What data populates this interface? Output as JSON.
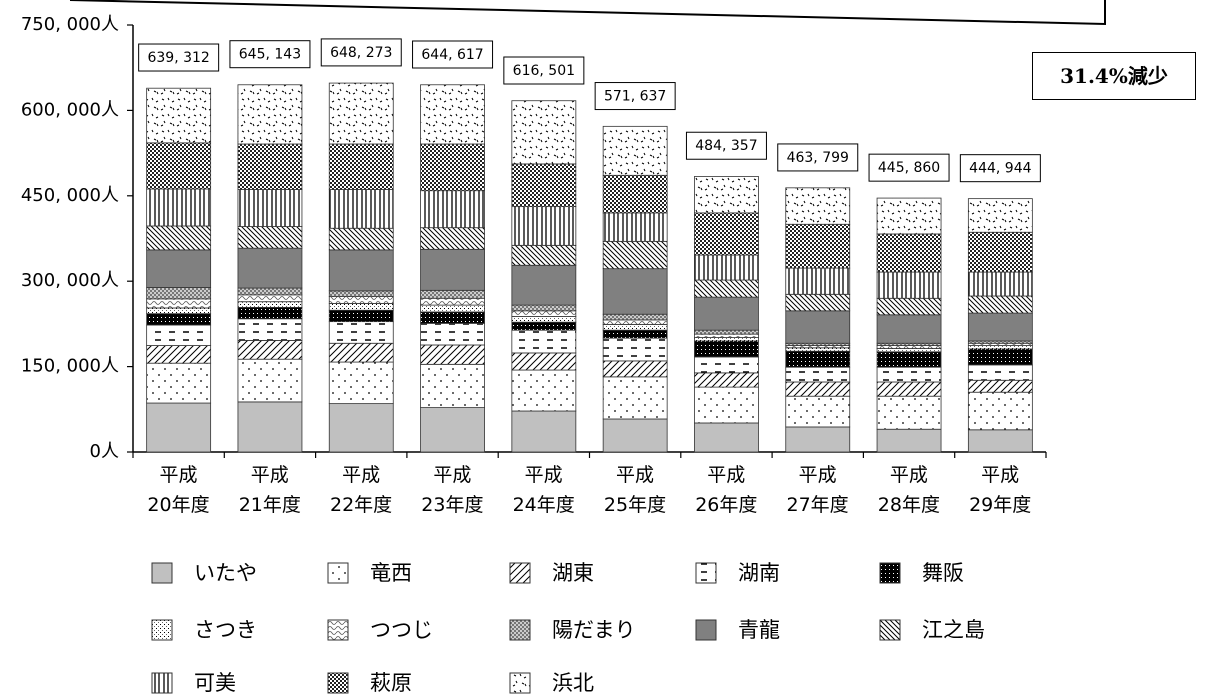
{
  "chart_data": {
    "type": "stacked_bar",
    "annotation": "31.4%減少",
    "categories": [
      "平成\n20年度",
      "平成\n21年度",
      "平成\n22年度",
      "平成\n23年度",
      "平成\n24年度",
      "平成\n25年度",
      "平成\n26年度",
      "平成\n27年度",
      "平成\n28年度",
      "平成\n29年度"
    ],
    "totals": [
      639312,
      645143,
      648273,
      644617,
      616501,
      571637,
      484357,
      463799,
      445860,
      444944
    ],
    "total_labels": [
      "639, 312",
      "645, 143",
      "648, 273",
      "644, 617",
      "616, 501",
      "571, 637",
      "484, 357",
      "463, 799",
      "445, 860",
      "444, 944"
    ],
    "ylim": [
      0,
      750000
    ],
    "yticks": [
      {
        "value": 0,
        "label": "0人"
      },
      {
        "value": 150000,
        "label": "150, 000人"
      },
      {
        "value": 300000,
        "label": "300, 000人"
      },
      {
        "value": 450000,
        "label": "450, 000人"
      },
      {
        "value": 600000,
        "label": "600, 000人"
      },
      {
        "value": 750000,
        "label": "750, 000人"
      }
    ],
    "series": [
      {
        "name": "いたや",
        "color": "#c0c0c0",
        "pattern": "solid",
        "values": [
          86000,
          88000,
          85000,
          78000,
          72000,
          58000,
          51000,
          44000,
          40000,
          39000
        ]
      },
      {
        "name": "竜西",
        "color": "#ffffff",
        "pattern": "dots",
        "values": [
          70000,
          75000,
          73000,
          76000,
          72000,
          74000,
          63000,
          54000,
          58000,
          66000
        ]
      },
      {
        "name": "湖東",
        "color": "#ffffff",
        "pattern": "diag",
        "values": [
          31000,
          33000,
          33000,
          34000,
          30000,
          28000,
          25000,
          25000,
          25000,
          21000
        ]
      },
      {
        "name": "湖南",
        "color": "#ffffff",
        "pattern": "dash",
        "values": [
          36000,
          38000,
          38000,
          38000,
          40000,
          40000,
          28000,
          26000,
          26000,
          27000
        ]
      },
      {
        "name": "舞阪",
        "color": "#000000",
        "pattern": "dense",
        "values": [
          20000,
          20000,
          20000,
          20000,
          14000,
          14000,
          28000,
          28000,
          27000,
          28000
        ]
      },
      {
        "name": "さつき",
        "color": "#ffffff",
        "pattern": "grid",
        "values": [
          10000,
          10000,
          12000,
          12000,
          10000,
          10000,
          6000,
          6000,
          6000,
          6000
        ]
      },
      {
        "name": "つつじ",
        "color": "#ffffff",
        "pattern": "wave",
        "values": [
          16000,
          12000,
          12000,
          12000,
          10000,
          8000,
          6000,
          4000,
          5000,
          4000
        ]
      },
      {
        "name": "陽だまり",
        "color": "#a0a0a0",
        "pattern": "check",
        "values": [
          20000,
          12000,
          10000,
          14000,
          10000,
          10000,
          7000,
          4000,
          4000,
          4000
        ]
      },
      {
        "name": "青龍",
        "color": "#808080",
        "pattern": "solid",
        "values": [
          66000,
          70000,
          72000,
          72000,
          70000,
          80000,
          58000,
          57000,
          50000,
          49000
        ]
      },
      {
        "name": "江之島",
        "color": "#ffffff",
        "pattern": "diag2",
        "values": [
          42000,
          38000,
          38000,
          38000,
          35000,
          48000,
          30000,
          29000,
          29000,
          30000
        ]
      },
      {
        "name": "可美",
        "color": "#ffffff",
        "pattern": "vert",
        "values": [
          65000,
          65000,
          68000,
          65000,
          68000,
          50000,
          44000,
          46000,
          46000,
          42000
        ]
      },
      {
        "name": "萩原",
        "color": "#404040",
        "pattern": "check2",
        "values": [
          81000,
          80000,
          80000,
          82000,
          75000,
          66000,
          74000,
          77000,
          67000,
          70000
        ]
      },
      {
        "name": "浜北",
        "color": "#ffffff",
        "pattern": "confetti",
        "values": [
          96000,
          104000,
          107000,
          104000,
          111000,
          86000,
          64000,
          64000,
          63000,
          59000
        ]
      }
    ]
  }
}
